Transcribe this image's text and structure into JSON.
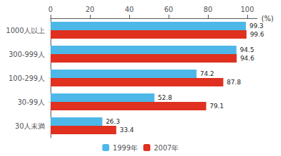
{
  "chart_data": {
    "type": "bar",
    "orientation": "horizontal",
    "categories": [
      "1000人以上",
      "300-999人",
      "100-299人",
      "30-99人",
      "30人未満"
    ],
    "series": [
      {
        "name": "1999年",
        "color": "#4db8e8",
        "values": [
          99.3,
          94.5,
          74.2,
          52.8,
          26.3
        ]
      },
      {
        "name": "2007年",
        "color": "#e03020",
        "values": [
          99.6,
          94.6,
          87.8,
          79.1,
          33.4
        ]
      }
    ],
    "xlabel": "(%)",
    "xlim": [
      0,
      105
    ],
    "xticks": [
      0,
      20,
      40,
      60,
      80,
      100
    ],
    "data_labels": true,
    "legend": "bottom",
    "grid": false
  }
}
